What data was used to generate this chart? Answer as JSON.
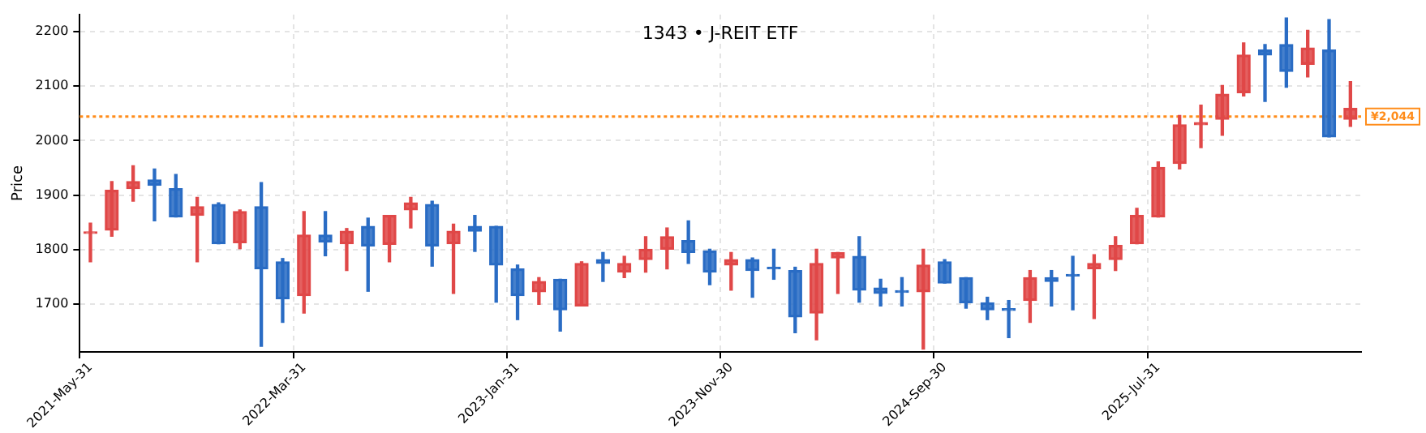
{
  "chart_data": {
    "type": "candlestick",
    "title": "1343 • J-REIT ETF",
    "ylabel": "Price",
    "categories": [
      "2021-May-31",
      null,
      null,
      null,
      null,
      null,
      null,
      null,
      null,
      null,
      "2022-Mar-31",
      null,
      null,
      null,
      null,
      null,
      null,
      null,
      null,
      null,
      "2023-Jan-31",
      null,
      null,
      null,
      null,
      null,
      null,
      null,
      null,
      null,
      "2023-Nov-30",
      null,
      null,
      null,
      null,
      null,
      null,
      null,
      null,
      null,
      "2024-Sep-30",
      null,
      null,
      null,
      null,
      null,
      null,
      null,
      null,
      null,
      "2025-Jul-31",
      null,
      null,
      null,
      null,
      null,
      null,
      null,
      null,
      null
    ],
    "ohlc": [
      [
        1830,
        1849,
        1778,
        1833
      ],
      [
        1836,
        1925,
        1825,
        1909
      ],
      [
        1912,
        1954,
        1889,
        1925
      ],
      [
        1928,
        1948,
        1853,
        1918
      ],
      [
        1912,
        1938,
        1860,
        1860
      ],
      [
        1863,
        1896,
        1778,
        1879
      ],
      [
        1883,
        1886,
        1811,
        1811
      ],
      [
        1813,
        1873,
        1802,
        1870
      ],
      [
        1879,
        1923,
        1623,
        1765
      ],
      [
        1778,
        1784,
        1667,
        1710
      ],
      [
        1716,
        1870,
        1684,
        1827
      ],
      [
        1827,
        1870,
        1789,
        1814
      ],
      [
        1811,
        1839,
        1762,
        1834
      ],
      [
        1843,
        1858,
        1724,
        1807
      ],
      [
        1810,
        1863,
        1778,
        1863
      ],
      [
        1873,
        1896,
        1840,
        1886
      ],
      [
        1883,
        1889,
        1770,
        1807
      ],
      [
        1811,
        1847,
        1720,
        1834
      ],
      [
        1843,
        1863,
        1797,
        1834
      ],
      [
        1843,
        1843,
        1704,
        1772
      ],
      [
        1765,
        1772,
        1672,
        1716
      ],
      [
        1723,
        1749,
        1700,
        1742
      ],
      [
        1746,
        1746,
        1651,
        1690
      ],
      [
        1697,
        1778,
        1697,
        1775
      ],
      [
        1782,
        1795,
        1742,
        1775
      ],
      [
        1759,
        1788,
        1749,
        1775
      ],
      [
        1782,
        1824,
        1759,
        1801
      ],
      [
        1801,
        1840,
        1765,
        1824
      ],
      [
        1817,
        1853,
        1775,
        1795
      ],
      [
        1798,
        1801,
        1736,
        1759
      ],
      [
        1772,
        1795,
        1726,
        1782
      ],
      [
        1782,
        1785,
        1713,
        1762
      ],
      [
        1768,
        1801,
        1746,
        1765
      ],
      [
        1762,
        1768,
        1648,
        1677
      ],
      [
        1684,
        1801,
        1635,
        1775
      ],
      [
        1785,
        1795,
        1720,
        1795
      ],
      [
        1788,
        1824,
        1704,
        1726
      ],
      [
        1730,
        1746,
        1697,
        1720
      ],
      [
        1723,
        1749,
        1697,
        1722
      ],
      [
        1723,
        1801,
        1618,
        1772
      ],
      [
        1778,
        1782,
        1739,
        1739
      ],
      [
        1749,
        1749,
        1693,
        1703
      ],
      [
        1703,
        1713,
        1672,
        1690
      ],
      [
        1690,
        1707,
        1639,
        1689
      ],
      [
        1707,
        1762,
        1667,
        1749
      ],
      [
        1749,
        1762,
        1697,
        1742
      ],
      [
        1753,
        1788,
        1690,
        1752
      ],
      [
        1765,
        1791,
        1674,
        1775
      ],
      [
        1782,
        1824,
        1762,
        1808
      ],
      [
        1811,
        1876,
        1811,
        1863
      ],
      [
        1860,
        1961,
        1860,
        1951
      ],
      [
        1958,
        2046,
        1948,
        2029
      ],
      [
        2029,
        2065,
        1987,
        2033
      ],
      [
        2039,
        2101,
        2010,
        2085
      ],
      [
        2088,
        2179,
        2082,
        2157
      ],
      [
        2166,
        2176,
        2072,
        2157
      ],
      [
        2176,
        2225,
        2098,
        2127
      ],
      [
        2140,
        2202,
        2117,
        2170
      ],
      [
        2166,
        2222,
        2007,
        2007
      ],
      [
        2039,
        2108,
        2026,
        2059
      ]
    ],
    "colors": [
      "#e04848",
      "#e04848",
      "#e04848",
      "#2a6cc4",
      "#2a6cc4",
      "#e04848",
      "#2a6cc4",
      "#e04848",
      "#2a6cc4",
      "#2a6cc4",
      "#e04848",
      "#2a6cc4",
      "#e04848",
      "#2a6cc4",
      "#e04848",
      "#e04848",
      "#2a6cc4",
      "#e04848",
      "#2a6cc4",
      "#2a6cc4",
      "#2a6cc4",
      "#e04848",
      "#2a6cc4",
      "#e04848",
      "#2a6cc4",
      "#e04848",
      "#e04848",
      "#e04848",
      "#2a6cc4",
      "#2a6cc4",
      "#e04848",
      "#2a6cc4",
      "#2a6cc4",
      "#2a6cc4",
      "#e04848",
      "#e04848",
      "#2a6cc4",
      "#2a6cc4",
      "#2a6cc4",
      "#e04848",
      "#2a6cc4",
      "#2a6cc4",
      "#2a6cc4",
      "#2a6cc4",
      "#e04848",
      "#2a6cc4",
      "#2a6cc4",
      "#e04848",
      "#e04848",
      "#e04848",
      "#e04848",
      "#e04848",
      "#e04848",
      "#e04848",
      "#e04848",
      "#2a6cc4",
      "#2a6cc4",
      "#e04848",
      "#2a6cc4",
      "#e04848"
    ],
    "ylim": [
      1613,
      2231
    ],
    "yticks": [
      1700,
      1800,
      1900,
      2000,
      2100,
      2200
    ],
    "grid": true,
    "ref_lines": [
      {
        "axis": "y",
        "value": 2044,
        "label": "¥2,044",
        "color": "#ff8c1a",
        "line_style": "dotted"
      }
    ]
  }
}
